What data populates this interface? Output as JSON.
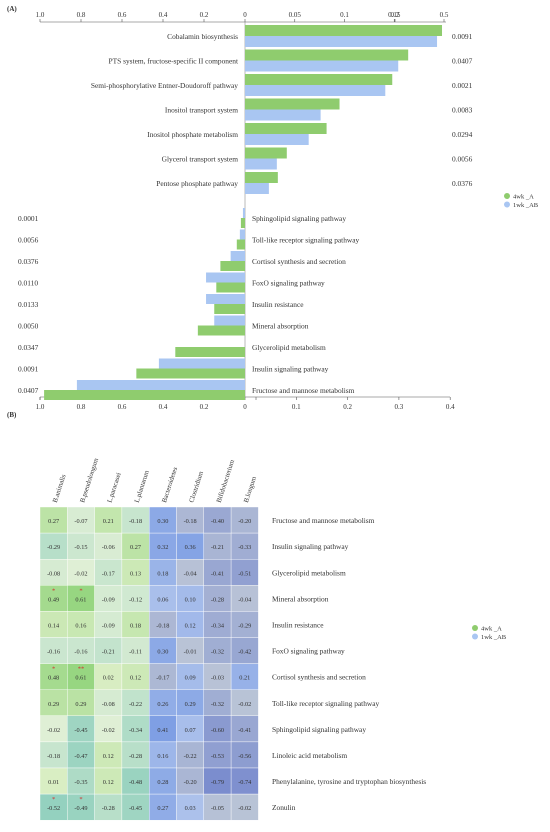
{
  "panel_a": {
    "label": "(A)",
    "top_axis_left_ticks": [
      "1.0",
      "0.8",
      "0.6",
      "0.4",
      "0.2",
      "0"
    ],
    "top_axis_right_ticks": [
      "0.05",
      "0.1",
      "0.15",
      "0.2",
      "0.5"
    ],
    "bottom_axis_left_ticks": [
      "1.0",
      "0.8",
      "0.6",
      "0.4",
      "0.2",
      "0"
    ],
    "bottom_axis_right_ticks": [
      "0.1",
      "0.2",
      "0.3",
      "0.4"
    ]
  },
  "panel_b": {
    "label": "(B)"
  },
  "colors": {
    "green": "#8fcc6e",
    "blue": "#a9c6f2"
  },
  "chart_data": [
    {
      "type": "bar",
      "orientation": "horizontal",
      "series": [
        {
          "name": "4wk _A",
          "color": "#8fcc6e"
        },
        {
          "name": "1wk _AB",
          "color": "#a9c6f2"
        }
      ],
      "enriched": {
        "pathways": [
          {
            "name": "Cobalamin biosynthesis",
            "p": "0.0091",
            "values": [
              0.198,
              0.193
            ]
          },
          {
            "name": "PTS system, fructose-specific II component",
            "p": "0.0407",
            "values": [
              0.164,
              0.154
            ]
          },
          {
            "name": "Semi-phosphorylative Entner-Doudoroff pathway",
            "p": "0.0021",
            "values": [
              0.148,
              0.141
            ]
          },
          {
            "name": "Inositol transport system",
            "p": "0.0083",
            "values": [
              0.095,
              0.076
            ]
          },
          {
            "name": "Inositol phosphate metabolism",
            "p": "0.0294",
            "values": [
              0.082,
              0.064
            ]
          },
          {
            "name": "Glycerol transport system",
            "p": "0.0056",
            "values": [
              0.042,
              0.032
            ]
          },
          {
            "name": "Pentose phosphate pathway",
            "p": "0.0376",
            "values": [
              0.033,
              0.024
            ]
          }
        ]
      },
      "depleted": {
        "pathways": [
          {
            "name": "Sphingolipid signaling pathway",
            "p": "0.0001",
            "values": [
              0.02,
              0.01
            ]
          },
          {
            "name": "Toll-like receptor signaling pathway",
            "p": "0.0056",
            "values": [
              0.04,
              0.025
            ]
          },
          {
            "name": "Cortisol synthesis and secretion",
            "p": "0.0376",
            "values": [
              0.12,
              0.07
            ]
          },
          {
            "name": "FoxO signaling pathway",
            "p": "0.0110",
            "values": [
              0.14,
              0.19
            ]
          },
          {
            "name": "Insulin resistance",
            "p": "0.0133",
            "values": [
              0.15,
              0.19
            ]
          },
          {
            "name": "Mineral absorption",
            "p": "0.0050",
            "values": [
              0.23,
              0.15
            ]
          },
          {
            "name": "Glycerolipid metabolism",
            "p": "0.0347",
            "values": [
              0.34,
              0.0
            ]
          },
          {
            "name": "Insulin signaling pathway",
            "p": "0.0091",
            "values": [
              0.53,
              0.42
            ]
          },
          {
            "name": "Fructose and mannose metabolism",
            "p": "0.0407",
            "values": [
              0.98,
              0.82
            ]
          }
        ]
      }
    },
    {
      "type": "heatmap",
      "columns": [
        "B.animalis",
        "B.pseudolongum",
        "L.paracasei",
        "L.plantarum",
        "Bacteroidetes",
        "Clostridium",
        "Bifidobacterium",
        "B.longum"
      ],
      "rows": [
        "Fructose and mannose metabolism",
        "Insulin signaling pathway",
        "Glycerolipid metabolism",
        "Mineral absorption",
        "Insulin resistance",
        "FoxO signaling pathway",
        "Cortisol synthesis and secretion",
        "Toll-like receptor signaling pathway",
        "Sphingolipid signaling pathway",
        "Linoleic acid metabolism",
        "Phenylalanine, tyrosine and tryptophan biosynthesis",
        "Zonulin"
      ],
      "values": [
        [
          "0.27",
          "-0.07",
          "0.21",
          "-0.18",
          "0.30",
          "-0.18",
          "-0.40",
          "-0.20"
        ],
        [
          "-0.29",
          "-0.15",
          "-0.06",
          "0.27",
          "0.32",
          "0.36",
          "-0.21",
          "-0.33"
        ],
        [
          "-0.08",
          "-0.02",
          "-0.17",
          "0.13",
          "0.18",
          "-0.04",
          "-0.41",
          "-0.51"
        ],
        [
          "0.49",
          "0.61",
          "-0.09",
          "-0.12",
          "0.06",
          "0.10",
          "-0.28",
          "-0.04"
        ],
        [
          "0.14",
          "0.16",
          "-0.09",
          "0.18",
          "-0.18",
          "0.12",
          "-0.34",
          "-0.29"
        ],
        [
          "-0.16",
          "-0.16",
          "-0.21",
          "-0.11",
          "0.30",
          "-0.01",
          "-0.32",
          "-0.42"
        ],
        [
          "0.48",
          "0.61",
          "0.02",
          "0.12",
          "-0.17",
          "0.09",
          "-0.03",
          "0.21"
        ],
        [
          "0.29",
          "0.29",
          "-0.08",
          "-0.22",
          "0.26",
          "0.29",
          "-0.32",
          "-0.02"
        ],
        [
          "-0.02",
          "-0.45",
          "-0.02",
          "-0.34",
          "0.41",
          "0.07",
          "-0.60",
          "-0.41"
        ],
        [
          "-0.18",
          "-0.47",
          "0.12",
          "-0.28",
          "0.16",
          "-0.22",
          "-0.53",
          "-0.56"
        ],
        [
          "0.01",
          "-0.35",
          "0.12",
          "-0.48",
          "0.28",
          "-0.20",
          "-0.79",
          "-0.74"
        ],
        [
          "-0.52",
          "-0.49",
          "-0.28",
          "-0.45",
          "0.27",
          "0.03",
          "-0.05",
          "-0.02"
        ]
      ],
      "significance": [
        [
          "",
          "",
          "",
          "",
          "",
          "",
          "",
          ""
        ],
        [
          "",
          "",
          "",
          "",
          "",
          "",
          "",
          ""
        ],
        [
          "",
          "",
          "",
          "",
          "",
          "",
          "",
          ""
        ],
        [
          "*",
          "*",
          "",
          "",
          "",
          "",
          "",
          ""
        ],
        [
          "",
          "",
          "",
          "",
          "",
          "",
          "",
          ""
        ],
        [
          "",
          "",
          "",
          "",
          "",
          "",
          "",
          ""
        ],
        [
          "*",
          "**",
          "",
          "",
          "",
          "",
          "",
          ""
        ],
        [
          "",
          "",
          "",
          "",
          "",
          "",
          "",
          ""
        ],
        [
          "",
          "",
          "",
          "",
          "",
          "",
          "",
          ""
        ],
        [
          "",
          "",
          "",
          "",
          "",
          "",
          "",
          ""
        ],
        [
          "",
          "",
          "",
          "",
          "",
          "",
          "",
          ""
        ],
        [
          "*",
          "*",
          "",
          "",
          "",
          "",
          "",
          ""
        ]
      ],
      "legend": [
        "4wk _A",
        "1wk _AB"
      ]
    }
  ]
}
